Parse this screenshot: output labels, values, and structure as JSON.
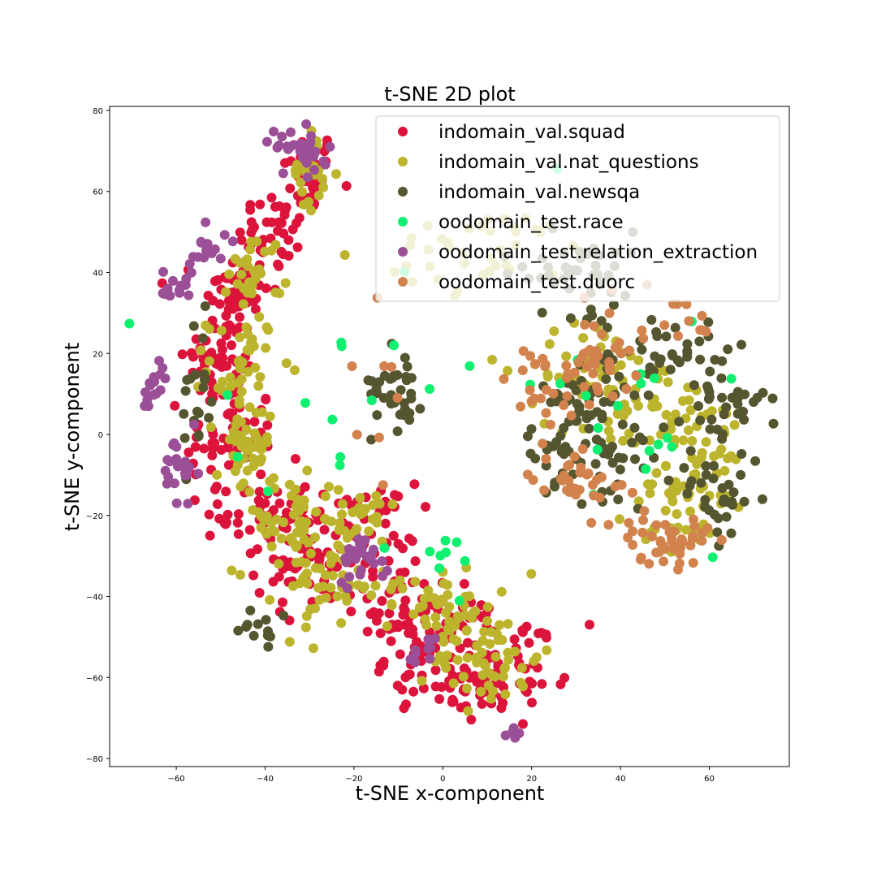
{
  "chart_data": {
    "type": "scatter",
    "title": "t-SNE 2D plot",
    "xlabel": "t-SNE x-component",
    "ylabel": "t-SNE y-component",
    "xlim": [
      -75,
      78
    ],
    "ylim": [
      -82,
      81
    ],
    "xticks": [
      -60,
      -40,
      -20,
      0,
      20,
      40,
      60
    ],
    "yticks": [
      -80,
      -60,
      -40,
      -20,
      0,
      20,
      40,
      60,
      80
    ],
    "grid": false,
    "legend_position": "upper-right",
    "series": [
      {
        "name": "indomain_val.squad",
        "color": "#DC143C",
        "clusters": [
          {
            "x": -30,
            "y": 65,
            "sx": 3,
            "sy": 5,
            "n": 40
          },
          {
            "x": -38,
            "y": 50,
            "sx": 4,
            "sy": 5,
            "n": 40
          },
          {
            "x": -47,
            "y": 35,
            "sx": 4,
            "sy": 5,
            "n": 50
          },
          {
            "x": -50,
            "y": 18,
            "sx": 4,
            "sy": 6,
            "n": 50
          },
          {
            "x": -48,
            "y": 0,
            "sx": 5,
            "sy": 7,
            "n": 60
          },
          {
            "x": -40,
            "y": -20,
            "sx": 5,
            "sy": 6,
            "n": 50
          },
          {
            "x": -30,
            "y": -32,
            "sx": 6,
            "sy": 6,
            "n": 50
          },
          {
            "x": -18,
            "y": -22,
            "sx": 6,
            "sy": 5,
            "n": 40
          },
          {
            "x": -12,
            "y": -42,
            "sx": 5,
            "sy": 6,
            "n": 40
          },
          {
            "x": -5,
            "y": -55,
            "sx": 4,
            "sy": 5,
            "n": 40
          },
          {
            "x": 8,
            "y": -62,
            "sx": 6,
            "sy": 5,
            "n": 50
          },
          {
            "x": 18,
            "y": -55,
            "sx": 5,
            "sy": 6,
            "n": 40
          },
          {
            "x": 2,
            "y": -45,
            "sx": 4,
            "sy": 4,
            "n": 25
          }
        ]
      },
      {
        "name": "indomain_val.nat_questions",
        "color": "#BDB42D",
        "clusters": [
          {
            "x": -30,
            "y": 65,
            "sx": 2,
            "sy": 5,
            "n": 25
          },
          {
            "x": -42,
            "y": 40,
            "sx": 3,
            "sy": 5,
            "n": 30
          },
          {
            "x": -45,
            "y": 17,
            "sx": 4,
            "sy": 6,
            "n": 40
          },
          {
            "x": -45,
            "y": -5,
            "sx": 3,
            "sy": 6,
            "n": 40
          },
          {
            "x": -35,
            "y": -22,
            "sx": 6,
            "sy": 6,
            "n": 45
          },
          {
            "x": -25,
            "y": -38,
            "sx": 6,
            "sy": 6,
            "n": 50
          },
          {
            "x": -20,
            "y": -20,
            "sx": 5,
            "sy": 4,
            "n": 30
          },
          {
            "x": 0,
            "y": -42,
            "sx": 6,
            "sy": 5,
            "n": 50
          },
          {
            "x": 10,
            "y": -55,
            "sx": 6,
            "sy": 6,
            "n": 55
          },
          {
            "x": 33,
            "y": 17,
            "sx": 7,
            "sy": 6,
            "n": 40
          },
          {
            "x": 45,
            "y": 5,
            "sx": 8,
            "sy": 8,
            "n": 50
          },
          {
            "x": 60,
            "y": -5,
            "sx": 6,
            "sy": 8,
            "n": 40
          },
          {
            "x": 52,
            "y": -20,
            "sx": 5,
            "sy": 5,
            "n": 30
          },
          {
            "x": 10,
            "y": 45,
            "sx": 12,
            "sy": 5,
            "n": 40
          }
        ]
      },
      {
        "name": "indomain_val.newsqa",
        "color": "#555530",
        "clusters": [
          {
            "x": -10,
            "y": 13,
            "sx": 3,
            "sy": 6,
            "n": 35
          },
          {
            "x": 30,
            "y": 40,
            "sx": 9,
            "sy": 5,
            "n": 45
          },
          {
            "x": 48,
            "y": 20,
            "sx": 6,
            "sy": 5,
            "n": 40
          },
          {
            "x": 32,
            "y": 8,
            "sx": 4,
            "sy": 4,
            "n": 35
          },
          {
            "x": 40,
            "y": -5,
            "sx": 5,
            "sy": 5,
            "n": 30
          },
          {
            "x": 63,
            "y": 9,
            "sx": 5,
            "sy": 5,
            "n": 35
          },
          {
            "x": 62,
            "y": -15,
            "sx": 5,
            "sy": 6,
            "n": 35
          },
          {
            "x": 25,
            "y": -5,
            "sx": 4,
            "sy": 4,
            "n": 25
          },
          {
            "x": -55,
            "y": 10,
            "sx": 2,
            "sy": 12,
            "n": 20
          },
          {
            "x": -40,
            "y": -48,
            "sx": 3,
            "sy": 3,
            "n": 12
          }
        ]
      },
      {
        "name": "oodomain_test.race",
        "color": "#10F070",
        "clusters": [
          {
            "x": 40,
            "y": 10,
            "sx": 10,
            "sy": 14,
            "n": 18
          },
          {
            "x": -10,
            "y": 25,
            "sx": 25,
            "sy": 25,
            "n": 10
          },
          {
            "x": 0,
            "y": -32,
            "sx": 4,
            "sy": 4,
            "n": 8
          },
          {
            "x": -30,
            "y": -10,
            "sx": 12,
            "sy": 12,
            "n": 8
          }
        ]
      },
      {
        "name": "oodomain_test.relation_extraction",
        "color": "#9B4F96",
        "clusters": [
          {
            "x": -30,
            "y": 70,
            "sx": 2,
            "sy": 3,
            "n": 20
          },
          {
            "x": -53,
            "y": 48,
            "sx": 2,
            "sy": 4,
            "n": 15
          },
          {
            "x": -60,
            "y": 36,
            "sx": 2,
            "sy": 3,
            "n": 15
          },
          {
            "x": -65,
            "y": 11,
            "sx": 2,
            "sy": 3,
            "n": 15
          },
          {
            "x": -59,
            "y": -10,
            "sx": 2,
            "sy": 5,
            "n": 25
          },
          {
            "x": -18,
            "y": -30,
            "sx": 3,
            "sy": 3,
            "n": 25
          },
          {
            "x": -5,
            "y": -54,
            "sx": 2,
            "sy": 2,
            "n": 10
          },
          {
            "x": 16,
            "y": -74,
            "sx": 1,
            "sy": 1,
            "n": 5
          },
          {
            "x": -34,
            "y": 72,
            "sx": 3,
            "sy": 2,
            "n": 10
          }
        ]
      },
      {
        "name": "oodomain_test.duorc",
        "color": "#D2824C",
        "clusters": [
          {
            "x": 50,
            "y": -26,
            "sx": 5,
            "sy": 3,
            "n": 45
          },
          {
            "x": 35,
            "y": 18,
            "sx": 4,
            "sy": 5,
            "n": 35
          },
          {
            "x": 30,
            "y": -10,
            "sx": 5,
            "sy": 5,
            "n": 35
          },
          {
            "x": 22,
            "y": 12,
            "sx": 4,
            "sy": 5,
            "n": 20
          },
          {
            "x": 48,
            "y": 30,
            "sx": 8,
            "sy": 4,
            "n": 15
          },
          {
            "x": -15,
            "y": 5,
            "sx": 3,
            "sy": 10,
            "n": 8
          }
        ]
      }
    ]
  }
}
